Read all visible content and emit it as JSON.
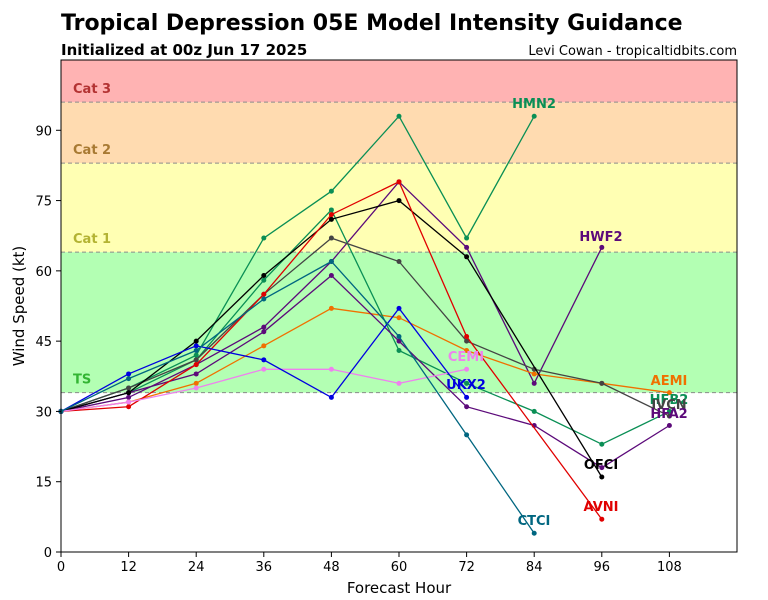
{
  "chart_data": {
    "type": "line",
    "title": "Tropical Depression 05E Model Intensity Guidance",
    "subtitle": "Initialized at 00z Jun 17 2025",
    "credit": "Levi Cowan - tropicaltidbits.com",
    "xlabel": "Forecast Hour",
    "ylabel": "Wind Speed (kt)",
    "xlim": [
      0,
      120
    ],
    "ylim": [
      0,
      105
    ],
    "xticks": [
      0,
      12,
      24,
      36,
      48,
      60,
      72,
      84,
      96,
      108
    ],
    "yticks": [
      0,
      15,
      30,
      45,
      60,
      75,
      90
    ],
    "grid": false,
    "bands": [
      {
        "label": "TS",
        "from": 34,
        "to": 64,
        "fill": "#b3ffb3",
        "text_color": "#33b533",
        "line_color": "#8c8c8c"
      },
      {
        "label": "Cat 1",
        "from": 64,
        "to": 83,
        "fill": "#ffffb3",
        "text_color": "#b3b333",
        "line_color": "#8c8c8c"
      },
      {
        "label": "Cat 2",
        "from": 83,
        "to": 96,
        "fill": "#ffdbb0",
        "text_color": "#a87a33",
        "line_color": "#8c8c8c"
      },
      {
        "label": "Cat 3",
        "from": 96,
        "to": 105,
        "fill": "#ffb3b3",
        "text_color": "#b33333",
        "line_color": "#8c8c8c"
      }
    ],
    "series": [
      {
        "name": "HMN2",
        "color": "#0a8f55",
        "x": [
          0,
          12,
          24,
          36,
          48,
          60,
          72,
          84
        ],
        "values": [
          30,
          35,
          42,
          67,
          77,
          93,
          67,
          93
        ]
      },
      {
        "name": "HWF2",
        "color": "#5c0a7a",
        "x": [
          0,
          12,
          24,
          36,
          48,
          60,
          72,
          84,
          96
        ],
        "values": [
          30,
          33,
          40,
          48,
          62,
          79,
          65,
          36,
          65
        ]
      },
      {
        "name": "AEMI",
        "color": "#f07000",
        "x": [
          0,
          12,
          24,
          36,
          48,
          60,
          72,
          84,
          96,
          108
        ],
        "values": [
          30,
          32,
          36,
          44,
          52,
          50,
          43,
          38,
          36,
          34
        ]
      },
      {
        "name": "HFB2",
        "color": "#0a8f55",
        "x": [
          0,
          12,
          24,
          36,
          48,
          60,
          72,
          84,
          96,
          108
        ],
        "values": [
          30,
          34,
          41,
          58,
          73,
          43,
          36,
          30,
          23,
          30
        ]
      },
      {
        "name": "IVCN",
        "color": "#444444",
        "x": [
          0,
          12,
          24,
          36,
          48,
          60,
          72,
          84,
          96,
          108
        ],
        "values": [
          30,
          35,
          41,
          55,
          67,
          62,
          45,
          39,
          36,
          29
        ]
      },
      {
        "name": "HFA2",
        "color": "#5c0a7a",
        "x": [
          0,
          12,
          24,
          36,
          48,
          60,
          72,
          84,
          96,
          108
        ],
        "values": [
          30,
          34,
          38,
          47,
          59,
          45,
          31,
          27,
          18,
          27
        ]
      },
      {
        "name": "OFCI",
        "color": "#000000",
        "x": [
          0,
          12,
          24,
          36,
          48,
          60,
          72,
          96
        ],
        "values": [
          30,
          34,
          45,
          59,
          71,
          75,
          63,
          16
        ]
      },
      {
        "name": "AVNI",
        "color": "#e00000",
        "x": [
          0,
          12,
          24,
          36,
          48,
          60,
          72,
          96
        ],
        "values": [
          30,
          31,
          40,
          55,
          72,
          79,
          46,
          7
        ]
      },
      {
        "name": "CEMI",
        "color": "#ee82ee",
        "x": [
          0,
          12,
          24,
          36,
          48,
          60,
          72
        ],
        "values": [
          30,
          32,
          35,
          39,
          39,
          36,
          39
        ]
      },
      {
        "name": "UKX2",
        "color": "#0000e0",
        "x": [
          0,
          12,
          24,
          36,
          48,
          60,
          72
        ],
        "values": [
          30,
          38,
          44,
          41,
          33,
          52,
          33
        ]
      },
      {
        "name": "CTCI",
        "color": "#006680",
        "x": [
          0,
          12,
          24,
          36,
          48,
          60,
          72,
          84
        ],
        "values": [
          30,
          37,
          43,
          54,
          62,
          46,
          25,
          4
        ]
      }
    ]
  }
}
